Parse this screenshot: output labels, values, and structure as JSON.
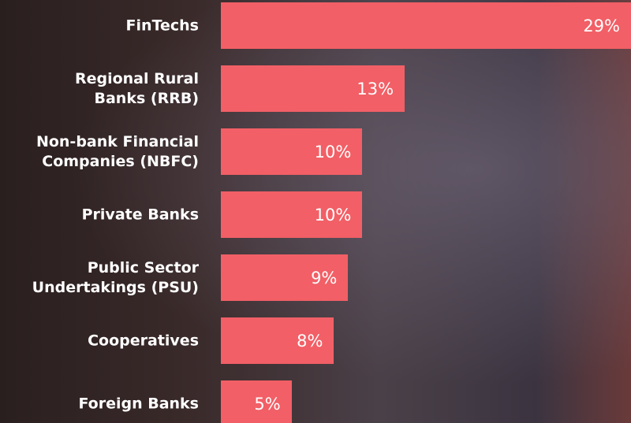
{
  "chart_data": {
    "type": "hbar",
    "categories": [
      "FinTechs",
      "Regional Rural\nBanks (RRB)",
      "Non-bank Financial\nCompanies (NBFC)",
      "Private Banks",
      "Public Sector\nUndertakings (PSU)",
      "Cooperatives",
      "Foreign Banks"
    ],
    "values": [
      29,
      13,
      10,
      10,
      9,
      8,
      5
    ],
    "value_labels": [
      "29%",
      "13%",
      "10%",
      "10%",
      "9%",
      "8%",
      "5%"
    ],
    "color": "#f25f66",
    "xlim": [
      0,
      29
    ]
  }
}
